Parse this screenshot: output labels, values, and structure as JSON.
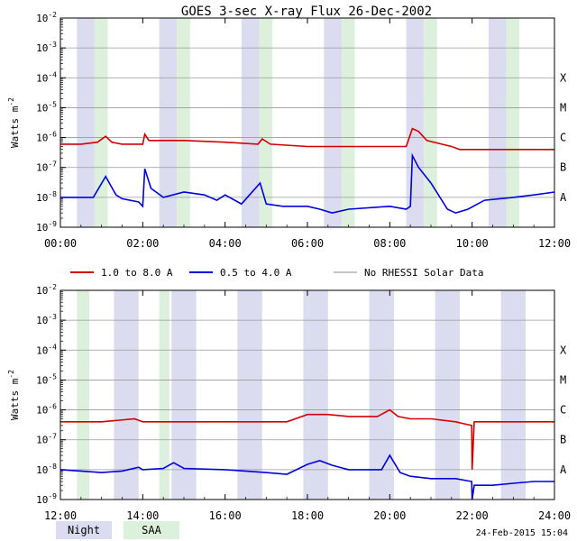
{
  "title": "GOES 3-sec X-ray Flux   26-Dec-2002",
  "footer_date": "24-Feb-2015 15:04",
  "legend": {
    "items": [
      {
        "label": "1.0 to 8.0 A",
        "color": "#d40000"
      },
      {
        "label": "0.5 to 4.0 A",
        "color": "#0000e0"
      },
      {
        "label": "No RHESSI Solar Data",
        "color": "#8c8c8c"
      }
    ],
    "shade": [
      {
        "label": "Night",
        "color": "#dcdcf0"
      },
      {
        "label": "SAA",
        "color": "#dcf0dc"
      }
    ]
  },
  "colors": {
    "night": "#dcdcf0",
    "saa": "#dcf0dc",
    "grid": "#9a9a9a"
  },
  "chart_data": [
    {
      "type": "line",
      "ylabel": "Watts m-2",
      "yscale": "log",
      "ylim": [
        1e-09,
        0.01
      ],
      "y_ticks": [
        "10-9",
        "10-8",
        "10-7",
        "10-6",
        "10-5",
        "10-4",
        "10-3",
        "10-2"
      ],
      "right_labels": [
        "A",
        "B",
        "C",
        "M",
        "X"
      ],
      "xlim": [
        0,
        12
      ],
      "x_ticks": [
        "00:00",
        "02:00",
        "04:00",
        "06:00",
        "08:00",
        "10:00",
        "12:00"
      ],
      "night": [
        [
          0.4,
          0.83
        ],
        [
          2.4,
          2.83
        ],
        [
          4.4,
          4.83
        ],
        [
          6.4,
          6.83
        ],
        [
          8.4,
          8.83
        ],
        [
          10.4,
          10.83
        ]
      ],
      "saa": [
        [
          0.83,
          1.15
        ],
        [
          2.83,
          3.15
        ],
        [
          4.83,
          5.15
        ],
        [
          6.83,
          7.15
        ],
        [
          8.83,
          9.15
        ],
        [
          10.83,
          11.15
        ]
      ],
      "series": [
        {
          "name": "1.0 to 8.0 A",
          "color": "#d40000",
          "x": [
            0.0,
            0.5,
            0.9,
            1.1,
            1.25,
            1.5,
            2.0,
            2.05,
            2.15,
            2.6,
            3.0,
            4.0,
            4.8,
            4.9,
            5.1,
            6.0,
            7.0,
            8.0,
            8.4,
            8.55,
            8.7,
            8.9,
            9.5,
            9.7,
            10.0,
            11.0,
            12.0
          ],
          "y": [
            6e-07,
            6e-07,
            7e-07,
            1.1e-06,
            7e-07,
            6e-07,
            6e-07,
            1.3e-06,
            8e-07,
            8e-07,
            8e-07,
            7e-07,
            6e-07,
            9e-07,
            6e-07,
            5e-07,
            5e-07,
            5e-07,
            5e-07,
            2e-06,
            1.6e-06,
            8e-07,
            5e-07,
            4e-07,
            4e-07,
            4e-07,
            4e-07
          ]
        },
        {
          "name": "0.5 to 4.0 A",
          "color": "#0000e0",
          "x": [
            0.0,
            0.5,
            0.8,
            1.1,
            1.35,
            1.5,
            1.9,
            2.0,
            2.05,
            2.2,
            2.5,
            3.0,
            3.5,
            3.8,
            4.0,
            4.4,
            4.85,
            5.0,
            5.4,
            6.0,
            6.3,
            6.6,
            7.0,
            8.0,
            8.4,
            8.5,
            8.55,
            8.7,
            9.0,
            9.4,
            9.6,
            9.9,
            10.3,
            11.0,
            11.5,
            12.0
          ],
          "y": [
            1e-08,
            1e-08,
            1e-08,
            5e-08,
            1.2e-08,
            9e-09,
            7e-09,
            5e-09,
            9e-08,
            2e-08,
            1e-08,
            1.5e-08,
            1.2e-08,
            8e-09,
            1.2e-08,
            6e-09,
            3e-08,
            6e-09,
            5e-09,
            5e-09,
            4e-09,
            3e-09,
            4e-09,
            5e-09,
            4e-09,
            5e-09,
            2.5e-07,
            1e-07,
            3e-08,
            4e-09,
            3e-09,
            4e-09,
            8e-09,
            1e-08,
            1.2e-08,
            1.5e-08
          ]
        }
      ]
    },
    {
      "type": "line",
      "ylabel": "Watts m-2",
      "yscale": "log",
      "ylim": [
        1e-09,
        0.01
      ],
      "y_ticks": [
        "10-9",
        "10-8",
        "10-7",
        "10-6",
        "10-5",
        "10-4",
        "10-3",
        "10-2"
      ],
      "right_labels": [
        "A",
        "B",
        "C",
        "M",
        "X"
      ],
      "xlim": [
        12,
        24
      ],
      "x_ticks": [
        "12:00",
        "14:00",
        "16:00",
        "18:00",
        "20:00",
        "22:00",
        "24:00"
      ],
      "night": [
        [
          13.3,
          13.9
        ],
        [
          14.7,
          15.3
        ],
        [
          16.3,
          16.9
        ],
        [
          17.9,
          18.5
        ],
        [
          19.5,
          20.1
        ],
        [
          21.1,
          21.7
        ],
        [
          22.7,
          23.3
        ]
      ],
      "saa": [
        [
          12.4,
          12.7
        ],
        [
          14.4,
          14.65
        ]
      ],
      "series": [
        {
          "name": "1.0 to 8.0 A",
          "color": "#d40000",
          "x": [
            12.0,
            13.0,
            13.8,
            14.0,
            14.5,
            15.0,
            16.0,
            17.0,
            17.5,
            18.0,
            18.5,
            19.0,
            19.7,
            20.0,
            20.2,
            20.5,
            21.0,
            21.6,
            21.99,
            22.0,
            22.05,
            22.3,
            23.0,
            24.0
          ],
          "y": [
            4e-07,
            4e-07,
            5e-07,
            4e-07,
            4e-07,
            4e-07,
            4e-07,
            4e-07,
            4e-07,
            7e-07,
            7e-07,
            6e-07,
            6e-07,
            1e-06,
            6e-07,
            5e-07,
            5e-07,
            4e-07,
            3e-07,
            1e-08,
            4e-07,
            4e-07,
            4e-07,
            4e-07
          ]
        },
        {
          "name": "0.5 to 4.0 A",
          "color": "#0000e0",
          "x": [
            12.0,
            12.5,
            13.0,
            13.5,
            13.9,
            14.0,
            14.5,
            14.75,
            15.0,
            16.0,
            17.0,
            17.5,
            18.0,
            18.3,
            18.6,
            19.0,
            19.8,
            20.0,
            20.25,
            20.5,
            21.0,
            21.6,
            21.99,
            22.0,
            22.05,
            22.5,
            23.0,
            23.5,
            24.0
          ],
          "y": [
            1e-08,
            9e-09,
            8e-09,
            9e-09,
            1.2e-08,
            1e-08,
            1.1e-08,
            1.7e-08,
            1.1e-08,
            1e-08,
            8e-09,
            7e-09,
            1.5e-08,
            2e-08,
            1.4e-08,
            1e-08,
            1e-08,
            3e-08,
            8e-09,
            6e-09,
            5e-09,
            5e-09,
            4e-09,
            1e-09,
            3e-09,
            3e-09,
            3.5e-09,
            4e-09,
            4e-09
          ]
        }
      ]
    }
  ]
}
